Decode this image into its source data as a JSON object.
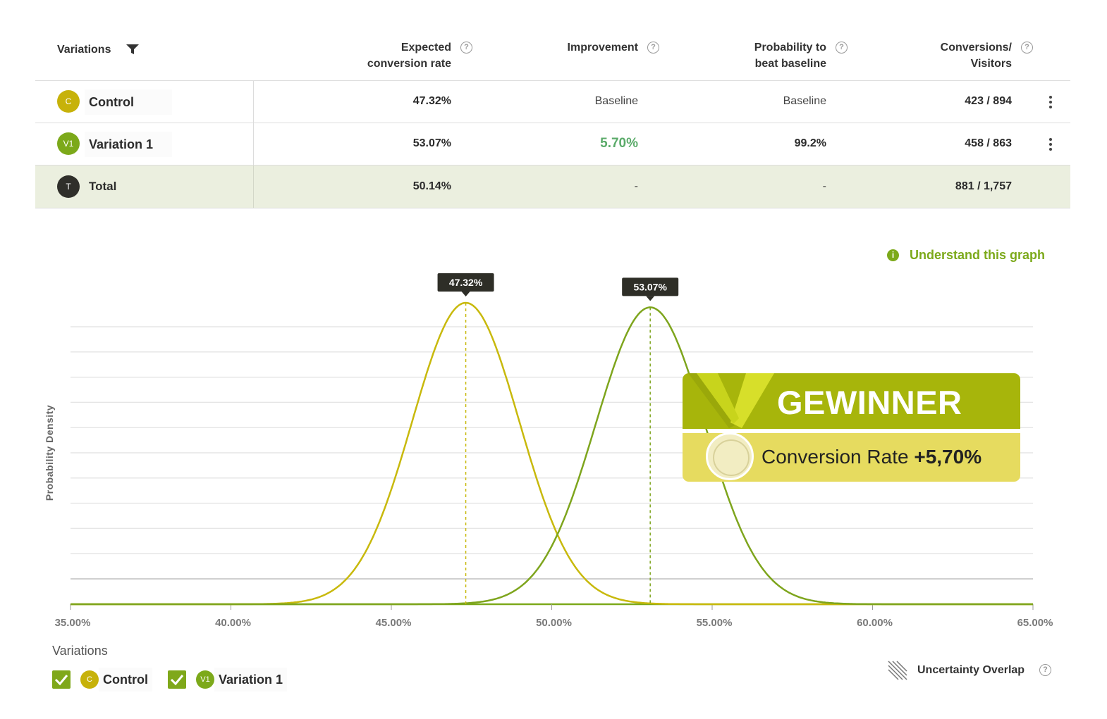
{
  "table": {
    "headers": {
      "variations": "Variations",
      "expected_line1": "Expected",
      "expected_line2": "conversion rate",
      "improvement": "Improvement",
      "probability_line1": "Probability to",
      "probability_line2": "beat baseline",
      "conversions_line1": "Conversions/",
      "conversions_line2": "Visitors",
      "help_glyph": "?"
    },
    "rows": [
      {
        "badge": "C",
        "name": "Control",
        "expected": "47.32%",
        "improvement": "Baseline",
        "probability": "Baseline",
        "conversions": "423 / 894",
        "badge_color": "#c7b20a"
      },
      {
        "badge": "V1",
        "name": "Variation 1",
        "expected": "53.07%",
        "improvement": "5.70%",
        "probability": "99.2%",
        "conversions": "458 / 863",
        "badge_color": "#7ca91a"
      },
      {
        "badge": "T",
        "name": "Total",
        "expected": "50.14%",
        "improvement": "-",
        "probability": "-",
        "conversions": "881 / 1,757",
        "badge_color": "#2f2f2a"
      }
    ]
  },
  "graph_link": {
    "icon": "info-icon",
    "text": "Understand this graph"
  },
  "chart_data": {
    "type": "line",
    "ylabel": "Probability Density",
    "xlim": [
      35,
      65
    ],
    "x_ticks": [
      "35.00%",
      "40.00%",
      "45.00%",
      "50.00%",
      "55.00%",
      "60.00%",
      "65.00%"
    ],
    "x_tick_values": [
      35,
      40,
      45,
      50,
      55,
      60,
      65
    ],
    "grid": true,
    "series": [
      {
        "name": "Control",
        "mean": 47.32,
        "sd": 1.67,
        "peak_label": "47.32%",
        "color": "#c8b90c",
        "peak": 1.0
      },
      {
        "name": "Variation 1",
        "mean": 53.07,
        "sd": 1.7,
        "peak_label": "53.07%",
        "color": "#7ea51d",
        "peak": 0.985
      }
    ]
  },
  "winner": {
    "title": "GEWINNER",
    "metric": "Conversion Rate",
    "value": "+5,70%"
  },
  "legend": {
    "title": "Variations",
    "items": [
      {
        "badge": "C",
        "label": "Control",
        "checked": true
      },
      {
        "badge": "V1",
        "label": "Variation 1",
        "checked": true
      }
    ],
    "overlap_label": "Uncertainty Overlap",
    "help_glyph": "?"
  },
  "colors": {
    "accent_green": "#7ca91a",
    "accent_yellow": "#c7b20a",
    "improvement_green": "#5bab6a",
    "total_row_bg": "#ebefdf",
    "link_green": "#7ca91a"
  }
}
